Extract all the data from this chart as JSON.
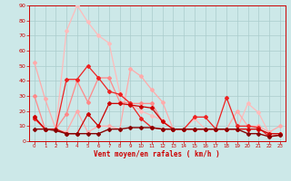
{
  "background_color": "#cce8e8",
  "grid_color": "#aacccc",
  "xlabel": "Vent moyen/en rafales ( km/h )",
  "xlabel_color": "#cc0000",
  "tick_color": "#cc0000",
  "xlim": [
    -0.5,
    23.5
  ],
  "ylim": [
    0,
    90
  ],
  "yticks": [
    0,
    10,
    20,
    30,
    40,
    50,
    60,
    70,
    80,
    90
  ],
  "xticks": [
    0,
    1,
    2,
    3,
    4,
    5,
    6,
    7,
    8,
    9,
    10,
    11,
    12,
    13,
    14,
    15,
    16,
    17,
    18,
    19,
    20,
    21,
    22,
    23
  ],
  "lines": [
    {
      "x": [
        0,
        1,
        2,
        3,
        4,
        5,
        6,
        7,
        8,
        9,
        10,
        11,
        12,
        13,
        14,
        15,
        16,
        17,
        18,
        19,
        20,
        21,
        22,
        23
      ],
      "y": [
        16,
        8,
        8,
        73,
        90,
        79,
        70,
        65,
        32,
        25,
        20,
        17,
        14,
        8,
        8,
        15,
        8,
        8,
        8,
        8,
        25,
        19,
        5,
        5
      ],
      "color": "#ffbbbb",
      "lw": 0.9,
      "marker": "D",
      "ms": 2.0
    },
    {
      "x": [
        0,
        1,
        2,
        3,
        4,
        5,
        6,
        7,
        8,
        9,
        10,
        11,
        12,
        13,
        14,
        15,
        16,
        17,
        18,
        19,
        20,
        21,
        22,
        23
      ],
      "y": [
        52,
        28,
        8,
        6,
        20,
        6,
        10,
        10,
        8,
        48,
        43,
        34,
        26,
        8,
        8,
        8,
        8,
        8,
        8,
        20,
        10,
        10,
        6,
        10
      ],
      "color": "#ffaaaa",
      "lw": 0.9,
      "marker": "D",
      "ms": 2.0
    },
    {
      "x": [
        0,
        1,
        2,
        3,
        4,
        5,
        6,
        7,
        8,
        9,
        10,
        11,
        12,
        13,
        14,
        15,
        16,
        17,
        18,
        19,
        20,
        21,
        22,
        23
      ],
      "y": [
        30,
        8,
        8,
        18,
        40,
        26,
        42,
        42,
        26,
        25,
        25,
        25,
        13,
        8,
        8,
        8,
        8,
        8,
        8,
        8,
        8,
        8,
        5,
        5
      ],
      "color": "#ff8888",
      "lw": 0.9,
      "marker": "D",
      "ms": 2.0
    },
    {
      "x": [
        0,
        1,
        2,
        3,
        4,
        5,
        6,
        7,
        8,
        9,
        10,
        11,
        12,
        13,
        14,
        15,
        16,
        17,
        18,
        19,
        20,
        21,
        22,
        23
      ],
      "y": [
        15,
        8,
        8,
        41,
        41,
        50,
        42,
        33,
        31,
        25,
        15,
        9,
        8,
        8,
        8,
        16,
        16,
        8,
        29,
        10,
        10,
        9,
        3,
        4
      ],
      "color": "#ee2222",
      "lw": 0.9,
      "marker": "D",
      "ms": 2.0
    },
    {
      "x": [
        0,
        1,
        2,
        3,
        4,
        5,
        6,
        7,
        8,
        9,
        10,
        11,
        12,
        13,
        14,
        15,
        16,
        17,
        18,
        19,
        20,
        21,
        22,
        23
      ],
      "y": [
        16,
        8,
        8,
        5,
        5,
        18,
        10,
        25,
        25,
        24,
        23,
        22,
        13,
        8,
        8,
        8,
        8,
        8,
        8,
        8,
        8,
        8,
        5,
        5
      ],
      "color": "#cc0000",
      "lw": 0.9,
      "marker": "D",
      "ms": 2.0
    },
    {
      "x": [
        0,
        1,
        2,
        3,
        4,
        5,
        6,
        7,
        8,
        9,
        10,
        11,
        12,
        13,
        14,
        15,
        16,
        17,
        18,
        19,
        20,
        21,
        22,
        23
      ],
      "y": [
        8,
        8,
        7,
        5,
        5,
        5,
        5,
        8,
        8,
        9,
        9,
        9,
        8,
        8,
        8,
        8,
        8,
        8,
        8,
        8,
        5,
        5,
        3,
        4
      ],
      "color": "#880000",
      "lw": 1.0,
      "marker": "D",
      "ms": 2.0
    }
  ]
}
